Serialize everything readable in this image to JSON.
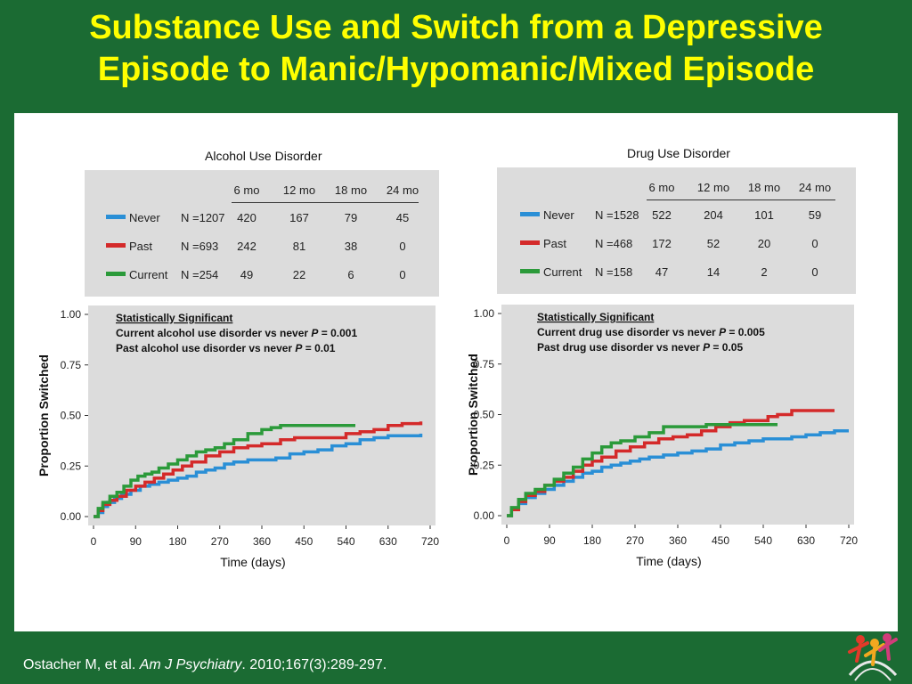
{
  "slide": {
    "title_line1": "Substance Use and Switch from a Depressive",
    "title_line2": "Episode to Manic/Hypomanic/Mixed Episode",
    "citation_prefix": "Ostacher M, et al.",
    "citation_journal": "Am J Psychiatry",
    "citation_suffix": ". 2010;167(3):289-297."
  },
  "colors": {
    "background": "#1b6b33",
    "title": "#ffff00",
    "never": "#2a8fd6",
    "past": "#d42a2a",
    "current": "#2b9a3a",
    "plot_bg": "#dcdcdc"
  },
  "chart_data": [
    {
      "type": "line",
      "title": "Alcohol Use Disorder",
      "xlabel": "Time (days)",
      "ylabel": "Proportion Switched",
      "xlim": [
        0,
        720
      ],
      "ylim": [
        0,
        1
      ],
      "xticks": [
        "0",
        "90",
        "180",
        "270",
        "360",
        "450",
        "540",
        "630",
        "720"
      ],
      "yticks": [
        "0.00",
        "0.25",
        "0.50",
        "0.75",
        "1.00"
      ],
      "annotation": {
        "heading": "Statistically Significant",
        "line1_text": "Current alcohol use disorder vs never ",
        "line1_p": "P",
        "line1_val": " = 0.001",
        "line2_text": "Past alcohol use  disorder vs never ",
        "line2_p": "P",
        "line2_val": " = 0.01"
      },
      "table": {
        "headers": [
          "6 mo",
          "12 mo",
          "18 mo",
          "24 mo"
        ],
        "rows": [
          {
            "name": "Never",
            "n": "N =1207",
            "values": [
              "420",
              "167",
              "79",
              "45"
            ]
          },
          {
            "name": "Past",
            "n": "N =693",
            "values": [
              "242",
              "81",
              "38",
              "0"
            ]
          },
          {
            "name": "Current",
            "n": "N =254",
            "values": [
              "49",
              "22",
              "6",
              "0"
            ]
          }
        ]
      },
      "series": [
        {
          "name": "Never",
          "points": [
            [
              0,
              0
            ],
            [
              10,
              0.02
            ],
            [
              20,
              0.05
            ],
            [
              30,
              0.07
            ],
            [
              45,
              0.09
            ],
            [
              60,
              0.11
            ],
            [
              80,
              0.13
            ],
            [
              100,
              0.15
            ],
            [
              120,
              0.16
            ],
            [
              140,
              0.17
            ],
            [
              160,
              0.18
            ],
            [
              180,
              0.19
            ],
            [
              200,
              0.2
            ],
            [
              220,
              0.22
            ],
            [
              240,
              0.23
            ],
            [
              260,
              0.24
            ],
            [
              280,
              0.26
            ],
            [
              300,
              0.27
            ],
            [
              330,
              0.28
            ],
            [
              360,
              0.28
            ],
            [
              390,
              0.29
            ],
            [
              420,
              0.31
            ],
            [
              450,
              0.32
            ],
            [
              480,
              0.33
            ],
            [
              510,
              0.35
            ],
            [
              540,
              0.36
            ],
            [
              570,
              0.38
            ],
            [
              600,
              0.39
            ],
            [
              630,
              0.4
            ],
            [
              660,
              0.4
            ],
            [
              700,
              0.41
            ]
          ]
        },
        {
          "name": "Past",
          "points": [
            [
              0,
              0
            ],
            [
              10,
              0.03
            ],
            [
              20,
              0.06
            ],
            [
              35,
              0.08
            ],
            [
              50,
              0.1
            ],
            [
              70,
              0.13
            ],
            [
              90,
              0.15
            ],
            [
              110,
              0.17
            ],
            [
              130,
              0.19
            ],
            [
              150,
              0.21
            ],
            [
              170,
              0.23
            ],
            [
              190,
              0.25
            ],
            [
              210,
              0.27
            ],
            [
              240,
              0.3
            ],
            [
              270,
              0.32
            ],
            [
              300,
              0.34
            ],
            [
              330,
              0.35
            ],
            [
              360,
              0.36
            ],
            [
              400,
              0.38
            ],
            [
              430,
              0.39
            ],
            [
              470,
              0.39
            ],
            [
              510,
              0.39
            ],
            [
              540,
              0.41
            ],
            [
              570,
              0.42
            ],
            [
              600,
              0.43
            ],
            [
              630,
              0.45
            ],
            [
              660,
              0.46
            ],
            [
              700,
              0.47
            ]
          ]
        },
        {
          "name": "Current",
          "points": [
            [
              0,
              0
            ],
            [
              10,
              0.04
            ],
            [
              20,
              0.07
            ],
            [
              35,
              0.1
            ],
            [
              50,
              0.12
            ],
            [
              65,
              0.15
            ],
            [
              80,
              0.18
            ],
            [
              95,
              0.2
            ],
            [
              110,
              0.21
            ],
            [
              125,
              0.22
            ],
            [
              140,
              0.24
            ],
            [
              160,
              0.26
            ],
            [
              180,
              0.28
            ],
            [
              200,
              0.3
            ],
            [
              220,
              0.32
            ],
            [
              240,
              0.33
            ],
            [
              260,
              0.34
            ],
            [
              280,
              0.36
            ],
            [
              300,
              0.38
            ],
            [
              330,
              0.41
            ],
            [
              360,
              0.43
            ],
            [
              380,
              0.44
            ],
            [
              400,
              0.45
            ],
            [
              440,
              0.45
            ],
            [
              480,
              0.45
            ],
            [
              520,
              0.45
            ],
            [
              560,
              0.45
            ]
          ]
        }
      ]
    },
    {
      "type": "line",
      "title": "Drug Use Disorder",
      "xlabel": "Time (days)",
      "ylabel": "Proportion Switched",
      "xlim": [
        0,
        720
      ],
      "ylim": [
        0,
        1
      ],
      "xticks": [
        "0",
        "90",
        "180",
        "270",
        "360",
        "450",
        "540",
        "630",
        "720"
      ],
      "yticks": [
        "0.00",
        "0.25",
        "0.50",
        "0.75",
        "1.00"
      ],
      "annotation": {
        "heading": "Statistically Significant",
        "line1_text": "Current drug use disorder vs never ",
        "line1_p": "P",
        "line1_val": " = 0.005",
        "line2_text": "Past drug use disorder vs never  ",
        "line2_p": "P",
        "line2_val": " = 0.05"
      },
      "table": {
        "headers": [
          "6 mo",
          "12 mo",
          "18 mo",
          "24 mo"
        ],
        "rows": [
          {
            "name": "Never",
            "n": "N =1528",
            "values": [
              "522",
              "204",
              "101",
              "59"
            ]
          },
          {
            "name": "Past",
            "n": "N =468",
            "values": [
              "172",
              "52",
              "20",
              "0"
            ]
          },
          {
            "name": "Current",
            "n": "N =158",
            "values": [
              "47",
              "14",
              "2",
              "0"
            ]
          }
        ]
      },
      "series": [
        {
          "name": "Never",
          "points": [
            [
              0,
              0
            ],
            [
              10,
              0.03
            ],
            [
              25,
              0.06
            ],
            [
              40,
              0.09
            ],
            [
              60,
              0.11
            ],
            [
              80,
              0.13
            ],
            [
              100,
              0.15
            ],
            [
              120,
              0.17
            ],
            [
              140,
              0.19
            ],
            [
              160,
              0.21
            ],
            [
              180,
              0.22
            ],
            [
              200,
              0.24
            ],
            [
              220,
              0.25
            ],
            [
              240,
              0.26
            ],
            [
              260,
              0.27
            ],
            [
              280,
              0.28
            ],
            [
              300,
              0.29
            ],
            [
              330,
              0.3
            ],
            [
              360,
              0.31
            ],
            [
              390,
              0.32
            ],
            [
              420,
              0.33
            ],
            [
              450,
              0.35
            ],
            [
              480,
              0.36
            ],
            [
              510,
              0.37
            ],
            [
              540,
              0.38
            ],
            [
              570,
              0.38
            ],
            [
              600,
              0.39
            ],
            [
              630,
              0.4
            ],
            [
              660,
              0.41
            ],
            [
              690,
              0.42
            ],
            [
              720,
              0.42
            ]
          ]
        },
        {
          "name": "Past",
          "points": [
            [
              0,
              0
            ],
            [
              10,
              0.03
            ],
            [
              25,
              0.07
            ],
            [
              40,
              0.1
            ],
            [
              60,
              0.12
            ],
            [
              80,
              0.15
            ],
            [
              100,
              0.17
            ],
            [
              120,
              0.19
            ],
            [
              140,
              0.22
            ],
            [
              160,
              0.25
            ],
            [
              180,
              0.27
            ],
            [
              200,
              0.29
            ],
            [
              230,
              0.32
            ],
            [
              260,
              0.34
            ],
            [
              290,
              0.36
            ],
            [
              320,
              0.38
            ],
            [
              350,
              0.39
            ],
            [
              380,
              0.4
            ],
            [
              410,
              0.42
            ],
            [
              440,
              0.44
            ],
            [
              470,
              0.46
            ],
            [
              500,
              0.47
            ],
            [
              530,
              0.47
            ],
            [
              550,
              0.49
            ],
            [
              570,
              0.5
            ],
            [
              600,
              0.52
            ],
            [
              630,
              0.52
            ],
            [
              660,
              0.52
            ],
            [
              690,
              0.52
            ]
          ]
        },
        {
          "name": "Current",
          "points": [
            [
              0,
              0
            ],
            [
              10,
              0.04
            ],
            [
              25,
              0.08
            ],
            [
              40,
              0.11
            ],
            [
              60,
              0.13
            ],
            [
              80,
              0.15
            ],
            [
              100,
              0.18
            ],
            [
              120,
              0.21
            ],
            [
              140,
              0.24
            ],
            [
              160,
              0.28
            ],
            [
              180,
              0.31
            ],
            [
              200,
              0.34
            ],
            [
              220,
              0.36
            ],
            [
              240,
              0.37
            ],
            [
              270,
              0.39
            ],
            [
              300,
              0.41
            ],
            [
              330,
              0.44
            ],
            [
              360,
              0.44
            ],
            [
              390,
              0.44
            ],
            [
              420,
              0.45
            ],
            [
              460,
              0.45
            ],
            [
              500,
              0.45
            ],
            [
              540,
              0.45
            ],
            [
              570,
              0.45
            ]
          ]
        }
      ]
    }
  ]
}
